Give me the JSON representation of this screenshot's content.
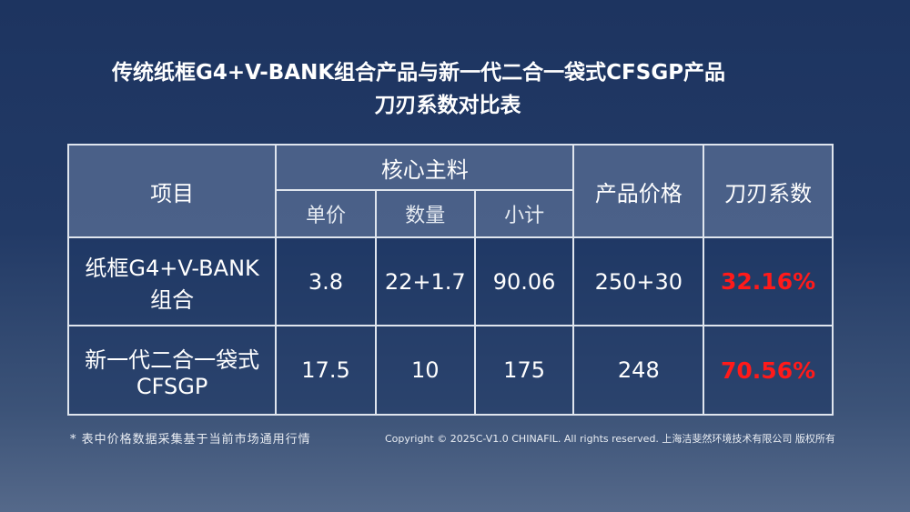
{
  "title_line1": "传统纸框G4+V-BANK组合产品与新一代二合一袋式CFSGP产品",
  "title_line2": "刀刃系数对比表",
  "table": {
    "headers": {
      "item": "项目",
      "core": "核心主料",
      "unit_price": "单价",
      "quantity": "数量",
      "subtotal": "小计",
      "price": "产品价格",
      "coefficient": "刀刃系数"
    },
    "rows": [
      {
        "item": "纸框G4+V-BANK组合",
        "unit_price": "3.8",
        "quantity": "22+1.7",
        "subtotal": "90.06",
        "price": "250+30",
        "coefficient": "32.16%"
      },
      {
        "item": "新一代二合一袋式CFSGP",
        "unit_price": "17.5",
        "quantity": "10",
        "subtotal": "175",
        "price": "248",
        "coefficient": "70.56%"
      }
    ]
  },
  "note": "* 表中价格数据采集基于当前市场通用行情",
  "copyright": "Copyright © 2025C-V1.0 CHINAFIL.  All rights reserved. 上海洁斐然环境技术有限公司  版权所有",
  "colors": {
    "highlight": "#ff1a1a"
  }
}
